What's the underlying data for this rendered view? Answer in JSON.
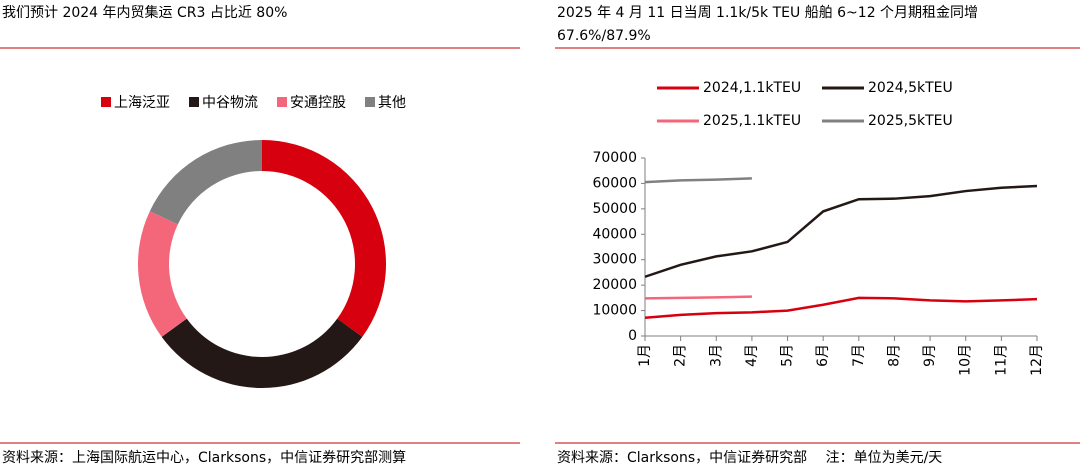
{
  "chart_data": [
    {
      "type": "pie",
      "title": "我们预计 2024 年内贸集运 CR3 占比近 80%",
      "categories": [
        "上海泛亚",
        "中谷物流",
        "安通控股",
        "其他"
      ],
      "values": [
        35,
        30,
        17,
        18
      ],
      "colors": [
        "#d7000f",
        "#231815",
        "#f4677a",
        "#808080"
      ],
      "donut": true,
      "footer": "资料来源：上海国际航运中心，Clarksons，中信证券研究部测算"
    },
    {
      "type": "line",
      "title": [
        "2025 年 4 月 11 日当周 1.1k/5k TEU 船舶 6~12 个月期租金同增",
        "67.6%/87.9%"
      ],
      "categories": [
        "1月",
        "2月",
        "3月",
        "4月",
        "5月",
        "6月",
        "7月",
        "8月",
        "9月",
        "10月",
        "11月",
        "12月"
      ],
      "series": [
        {
          "name": "2024,1.1kTEU",
          "color": "#d7000f",
          "values": [
            7200,
            8300,
            9000,
            9300,
            10000,
            12300,
            15000,
            14800,
            14000,
            13600,
            14000,
            14500
          ]
        },
        {
          "name": "2024,5kTEU",
          "color": "#231815",
          "values": [
            23300,
            28000,
            31300,
            33300,
            37000,
            49000,
            53800,
            54000,
            55000,
            57000,
            58300,
            59000
          ]
        },
        {
          "name": "2025,1.1kTEU",
          "color": "#f4677a",
          "values": [
            14800,
            15000,
            15200,
            15500,
            null,
            null,
            null,
            null,
            null,
            null,
            null,
            null
          ]
        },
        {
          "name": "2025,5kTEU",
          "color": "#808080",
          "values": [
            60500,
            61200,
            61500,
            62000,
            null,
            null,
            null,
            null,
            null,
            null,
            null,
            null
          ]
        }
      ],
      "ylim": [
        0,
        70000
      ],
      "yticks": [
        0,
        10000,
        20000,
        30000,
        40000,
        50000,
        60000,
        70000
      ],
      "grid": false,
      "footer": "资料来源：Clarksons，中信证券研究部　 注：单位为美元/天"
    }
  ]
}
